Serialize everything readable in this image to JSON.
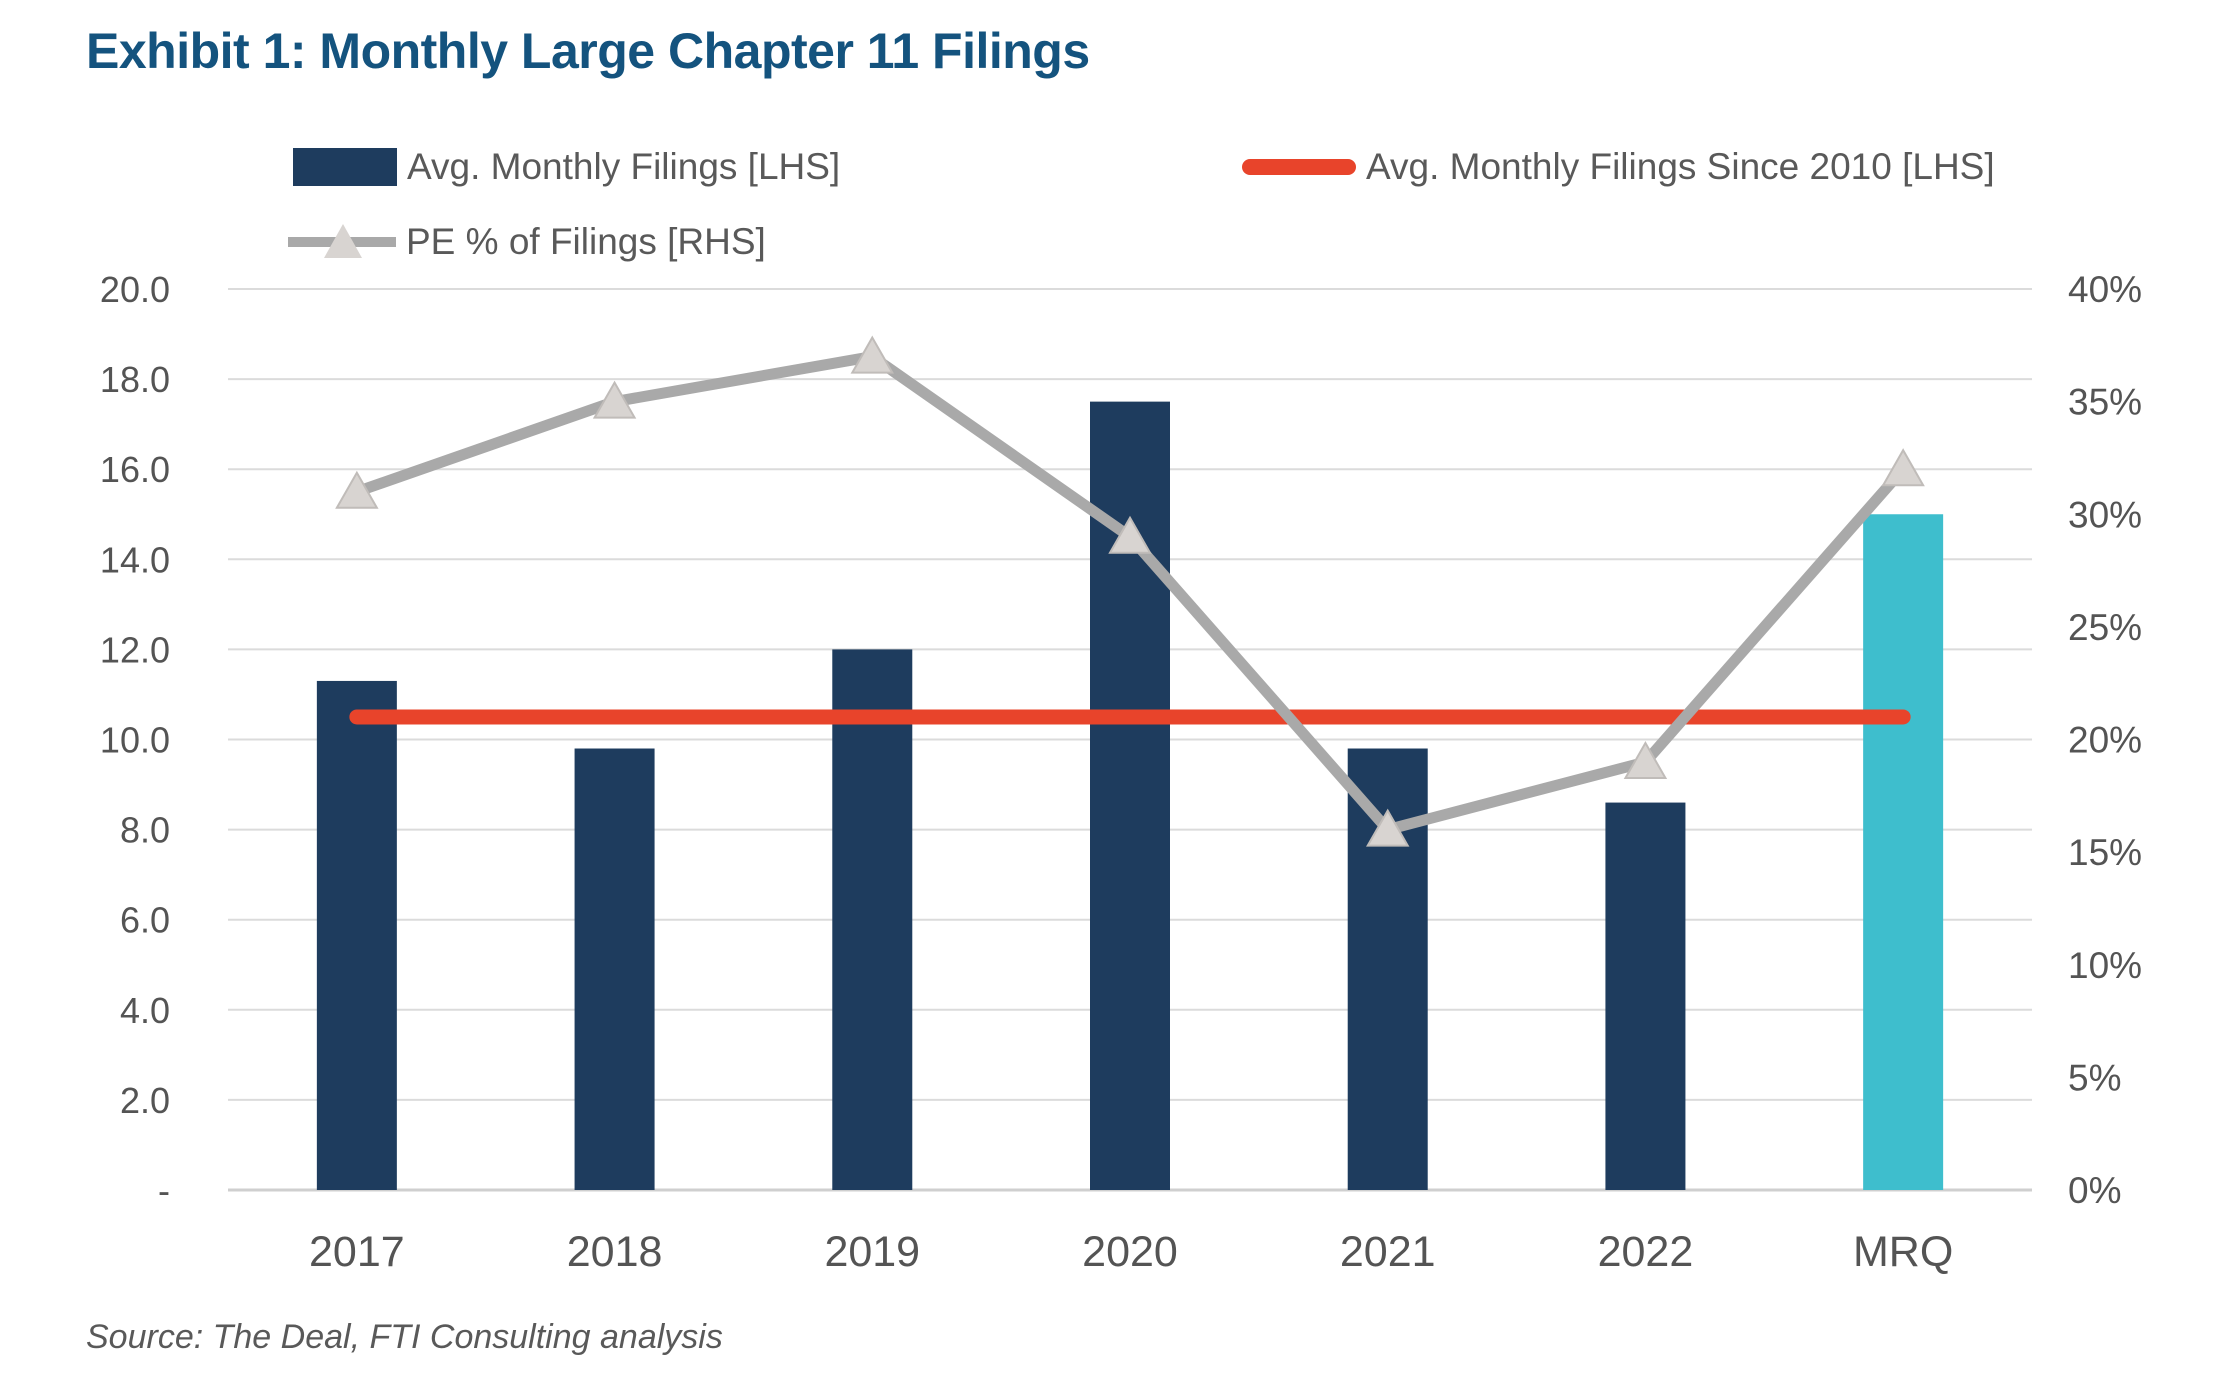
{
  "title": "Exhibit 1: Monthly Large Chapter 11 Filings",
  "source": "Source: The Deal, FTI Consulting analysis",
  "legend": {
    "items": [
      {
        "label": "Avg. Monthly Filings [LHS]",
        "swatch": "bar"
      },
      {
        "label": "Avg. Monthly Filings Since 2010 [LHS]",
        "swatch": "red-line"
      },
      {
        "label": "PE % of Filings [RHS]",
        "swatch": "gray-line-triangle"
      }
    ]
  },
  "colors": {
    "title": "#14537E",
    "bar": "#1E3C5E",
    "bar_highlight": "#3EBECD",
    "avg_line": "#E8442B",
    "pe_line": "#A9A9A9",
    "pe_marker_fill": "#D8D4D1",
    "pe_marker_edge": "#C0BCB9",
    "gridline": "#DBDBDB",
    "baseline": "#CFCFCF",
    "axis_text": "#545454",
    "text": "#595959"
  },
  "chart_data": {
    "type": "bar",
    "subtype": "dual-axis bar + lines",
    "categories": [
      "2017",
      "2018",
      "2019",
      "2020",
      "2021",
      "2022",
      "MRQ"
    ],
    "series": [
      {
        "name": "Avg. Monthly Filings [LHS]",
        "type": "bar",
        "axis": "left",
        "values": [
          11.3,
          9.8,
          12.0,
          17.5,
          9.8,
          8.6,
          15.0
        ],
        "highlight_index": 6
      },
      {
        "name": "Avg. Monthly Filings Since 2010 [LHS]",
        "type": "line",
        "axis": "left",
        "constant_value": 10.5
      },
      {
        "name": "PE % of Filings [RHS]",
        "type": "line",
        "axis": "right",
        "marker": "triangle",
        "values": [
          31,
          35,
          37,
          29,
          16,
          19,
          32
        ],
        "unit": "%"
      }
    ],
    "left_axis": {
      "min": 0,
      "max": 20,
      "grid_step": 2,
      "tick_labels": [
        "20.0",
        "18.0",
        "16.0",
        "14.0",
        "12.0",
        "10.0",
        "8.0",
        "6.0",
        "4.0",
        "2.0",
        "-"
      ]
    },
    "right_axis": {
      "min": 0,
      "max": 40,
      "label_step": 5,
      "tick_labels": [
        "40%",
        "35%",
        "30%",
        "25%",
        "20%",
        "15%",
        "10%",
        "5%",
        "0%"
      ]
    },
    "grid": true,
    "legend_position": "top"
  }
}
